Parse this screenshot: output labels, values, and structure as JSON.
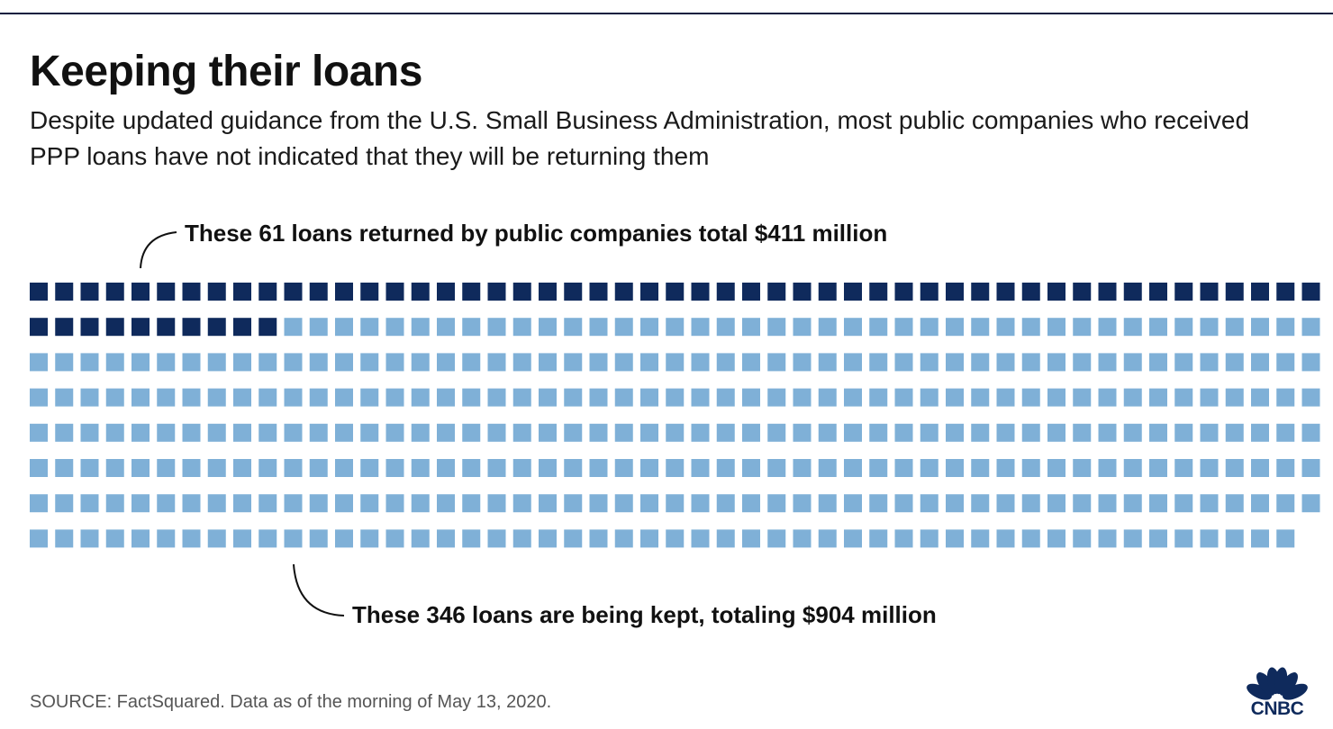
{
  "header": {
    "title": "Keeping their loans",
    "subtitle": "Despite updated guidance from the U.S. Small Business Administration, most public companies who received PPP loans have not indicated that they will be returning them"
  },
  "annotations": {
    "returned": "These 61 loans returned by public companies total $411 million",
    "kept": "These 346 loans are being kept, totaling $904 million"
  },
  "footer": {
    "source": "SOURCE: FactSquared. Data as of the morning of May 13, 2020.",
    "logo_text": "CNBC"
  },
  "colors": {
    "accent_dark": "#0f2a5c",
    "returned": "#0f2a5c",
    "kept": "#7fb0d7"
  },
  "chart_data": {
    "type": "waffle",
    "title": "Keeping their loans",
    "columns": 51,
    "series": [
      {
        "name": "Returned",
        "count": 61,
        "total": "$411 million",
        "color": "#0f2a5c"
      },
      {
        "name": "Kept",
        "count": 346,
        "total": "$904 million",
        "color": "#7fb0d7"
      }
    ]
  }
}
